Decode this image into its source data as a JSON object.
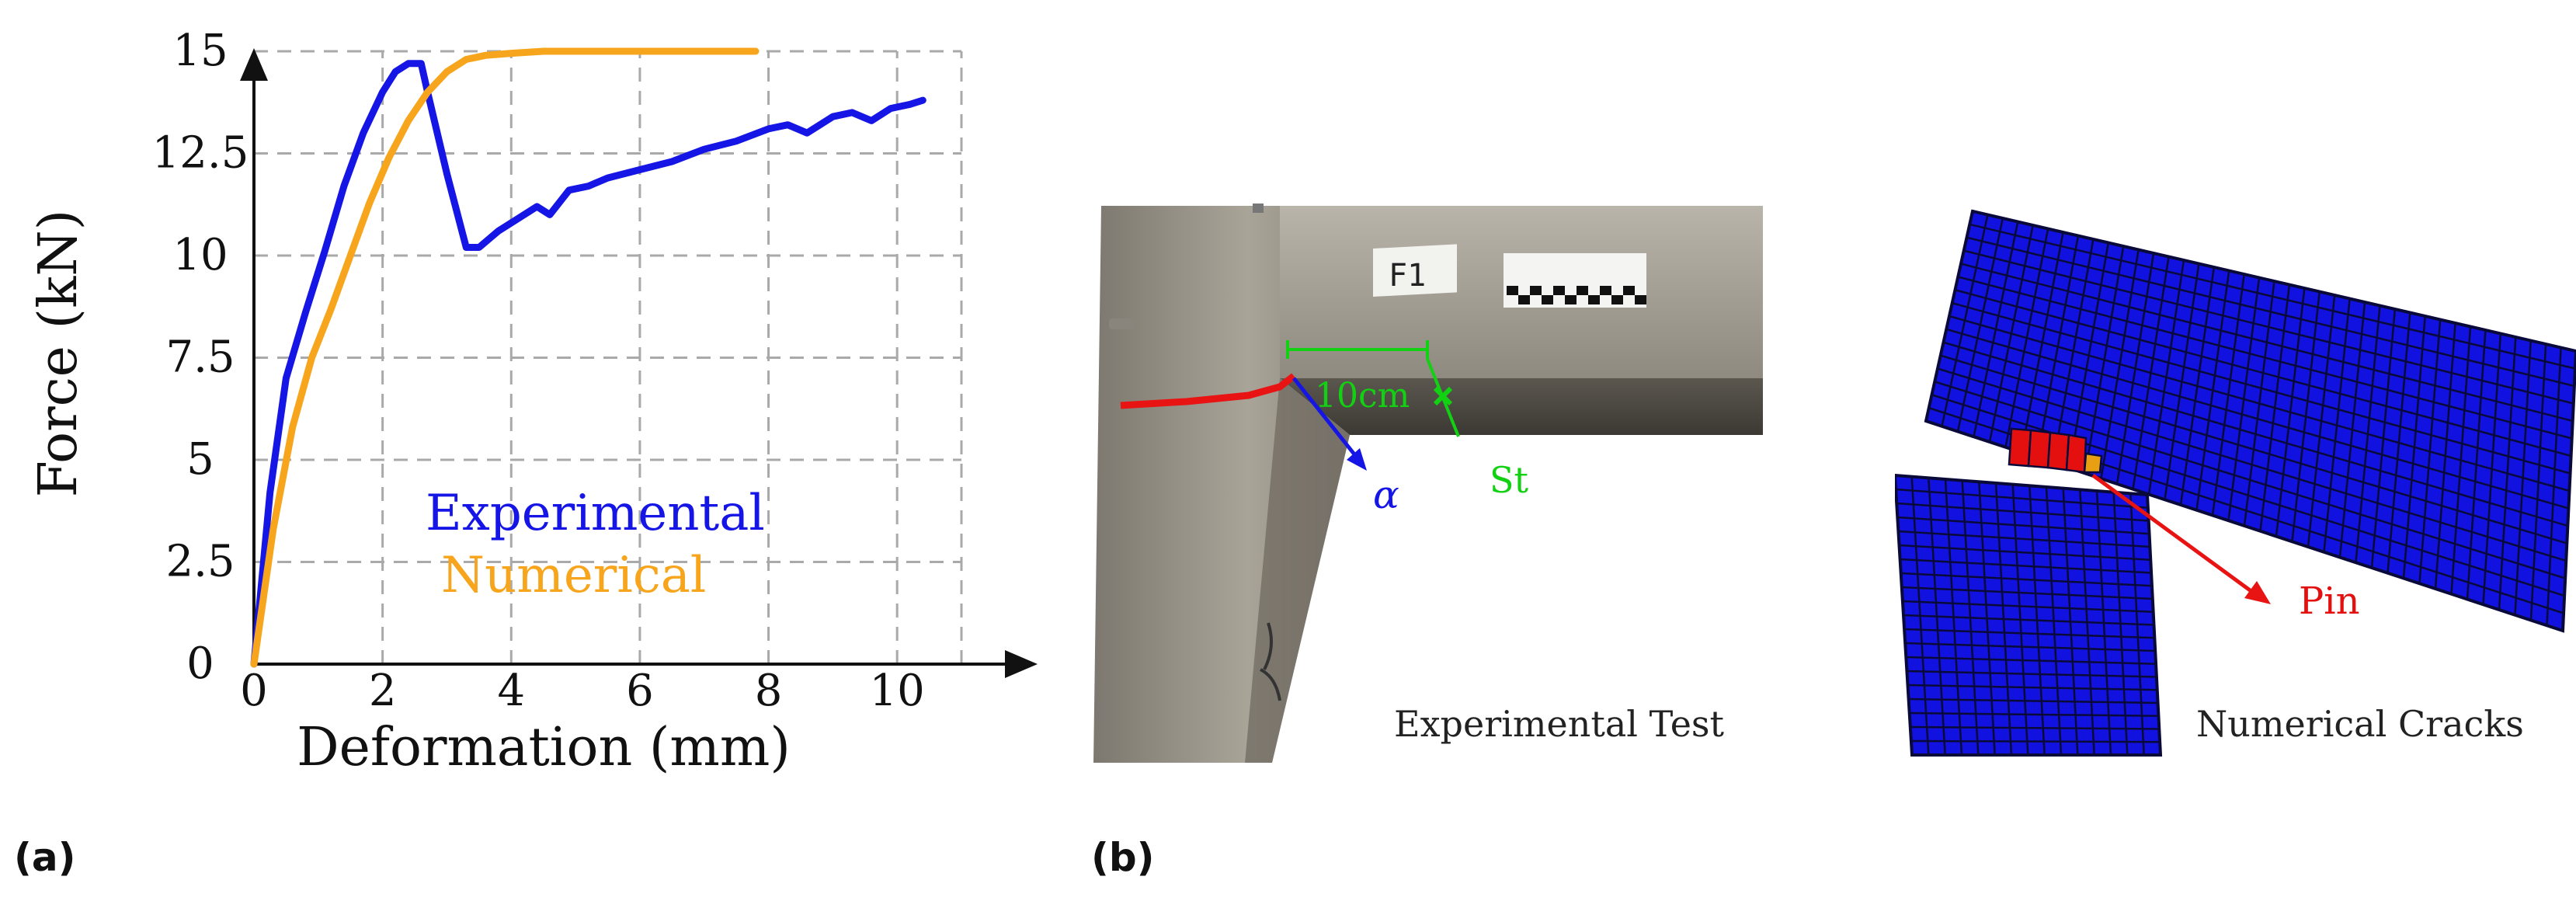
{
  "chart_data": {
    "type": "line",
    "xlabel": "Deformation (mm)",
    "ylabel": "Force (kN)",
    "xlim": [
      0,
      11
    ],
    "ylim": [
      0,
      15
    ],
    "x_ticks": [
      "0",
      "2",
      "4",
      "6",
      "8",
      "10"
    ],
    "y_ticks": [
      "0",
      "2.5",
      "5",
      "7.5",
      "10",
      "12.5",
      "15"
    ],
    "grid": true,
    "legend_position": "center",
    "series": [
      {
        "name": "Experimental",
        "color": "#1515e6",
        "x": [
          0,
          0.25,
          0.5,
          0.8,
          1.1,
          1.4,
          1.7,
          2.0,
          2.2,
          2.4,
          2.6,
          2.7,
          3.0,
          3.3,
          3.5,
          3.8,
          4.1,
          4.4,
          4.6,
          4.9,
          5.2,
          5.5,
          6.0,
          6.5,
          7.0,
          7.5,
          8.0,
          8.3,
          8.6,
          9.0,
          9.3,
          9.6,
          9.9,
          10.2,
          10.4
        ],
        "y": [
          0,
          4.2,
          7.0,
          8.6,
          10.1,
          11.7,
          13.0,
          14.0,
          14.5,
          14.7,
          14.7,
          14.0,
          12.0,
          10.2,
          10.2,
          10.6,
          10.9,
          11.2,
          11.0,
          11.6,
          11.7,
          11.9,
          12.1,
          12.3,
          12.6,
          12.8,
          13.1,
          13.2,
          13.0,
          13.4,
          13.5,
          13.3,
          13.6,
          13.7,
          13.8
        ]
      },
      {
        "name": "Numerical",
        "color": "#f7a51c",
        "x": [
          0,
          0.3,
          0.6,
          0.9,
          1.2,
          1.5,
          1.8,
          2.1,
          2.4,
          2.7,
          3.0,
          3.3,
          3.6,
          4.0,
          4.5,
          5.0,
          6.0,
          7.0,
          7.8
        ],
        "y": [
          0,
          3.3,
          5.8,
          7.5,
          8.7,
          10.0,
          11.3,
          12.4,
          13.3,
          14.0,
          14.5,
          14.8,
          14.9,
          14.95,
          15.0,
          15.0,
          15.0,
          15.0,
          15.0
        ]
      }
    ]
  },
  "panels": {
    "a_label": "(a)",
    "b_label": "(b)"
  },
  "photo": {
    "sign_text": "F1",
    "distance_label": "10cm",
    "alpha_label": "α",
    "st_label": "St",
    "caption": "Experimental Test",
    "colors": {
      "crack": "#e81414",
      "alpha_arrow": "#1515e6",
      "marker": "#12d112"
    }
  },
  "mesh": {
    "pin_label": "Pin",
    "caption": "Numerical Cracks",
    "colors": {
      "element": "#1111e0",
      "crack": "#e41010",
      "partial": "#e8a012",
      "arrow": "#e81414"
    }
  }
}
